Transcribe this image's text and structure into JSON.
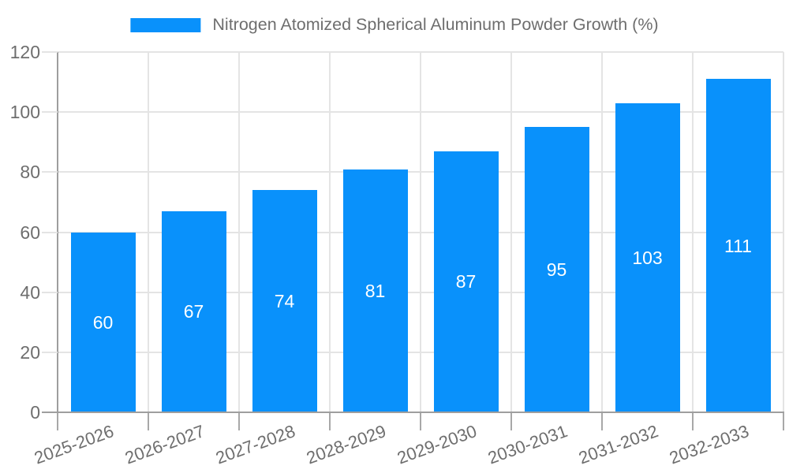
{
  "chart_data": {
    "type": "bar",
    "title": "Nitrogen Atomized Spherical Aluminum Powder Growth (%)",
    "categories": [
      "2025-2026",
      "2026-2027",
      "2027-2028",
      "2028-2029",
      "2029-2030",
      "2030-2031",
      "2031-2032",
      "2032-2033"
    ],
    "values": [
      60,
      67,
      74,
      81,
      87,
      95,
      103,
      111
    ],
    "xlabel": "",
    "ylabel": "",
    "ylim": [
      0,
      120
    ],
    "yticks": [
      0,
      20,
      40,
      60,
      80,
      100,
      120
    ],
    "grid": true,
    "legend_position": "top-center",
    "colors": {
      "bar": "#0991fb",
      "value_label": "#ffffff",
      "axis_text": "#6e6e6e",
      "legend_text": "#6e6e6e",
      "grid_line": "#e4e4e4",
      "axis_line": "#9e9e9e",
      "tick": "#a8a8a8",
      "background": "#ffffff"
    }
  }
}
